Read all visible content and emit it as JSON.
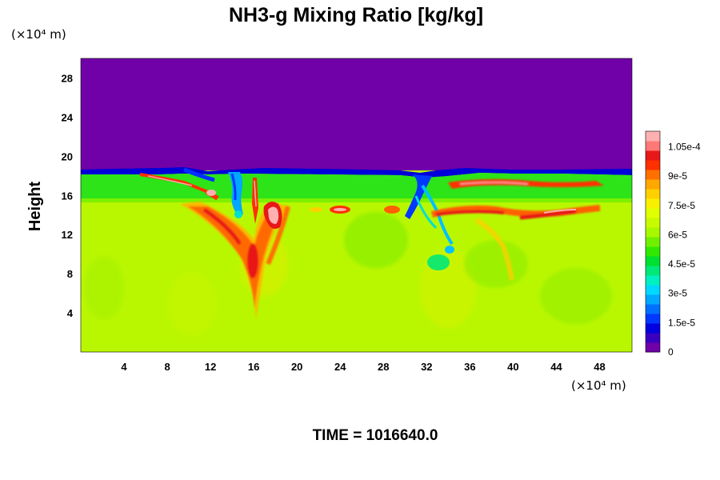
{
  "chart_data": {
    "type": "heatmap",
    "title": "NH3-g Mixing Ratio [kg/kg]",
    "ylabel": "Height",
    "x_unit": "(×10⁴ m)",
    "y_unit": "(×10⁴ m)",
    "footer": "TIME = 1016640.0",
    "x_ticks": [
      4,
      8,
      12,
      16,
      20,
      24,
      28,
      32,
      36,
      40,
      44,
      48
    ],
    "y_ticks": [
      4,
      8,
      12,
      16,
      20,
      24,
      28
    ],
    "xlim": [
      0,
      51
    ],
    "ylim": [
      0,
      30
    ],
    "colorbar": {
      "range": [
        0,
        0.000113
      ],
      "ticks": [
        {
          "value": 0,
          "label": "0"
        },
        {
          "value": 1.5e-05,
          "label": "1.5e-5"
        },
        {
          "value": 3e-05,
          "label": "3e-5"
        },
        {
          "value": 4.5e-05,
          "label": "4.5e-5"
        },
        {
          "value": 6e-05,
          "label": "6e-5"
        },
        {
          "value": 7.5e-05,
          "label": "7.5e-5"
        },
        {
          "value": 9e-05,
          "label": "9e-5"
        },
        {
          "value": 0.000105,
          "label": "1.05e-4"
        }
      ],
      "colors": [
        "#7000a8",
        "#3a00c0",
        "#0000e0",
        "#0038ff",
        "#0070ff",
        "#00a8ff",
        "#00d8ff",
        "#00f0c0",
        "#00e878",
        "#00e030",
        "#30e800",
        "#70f000",
        "#a8f800",
        "#c8fa00",
        "#e0ff00",
        "#f8f000",
        "#ffd000",
        "#ffa800",
        "#ff7000",
        "#ff3000",
        "#e81818",
        "#ff7878",
        "#ffb0b0"
      ]
    },
    "regions": {
      "upper_layer": "0 (above ~18.5)",
      "tropopause_band": "~6e-5 (about 15.5 to 18)",
      "lower_atmosphere": "~7.5e-5 (below ~15)",
      "features": [
        {
          "description": "high-value plume",
          "x": 15.8,
          "y": 9,
          "value": 0.000105
        },
        {
          "description": "high-value streak",
          "x": 18,
          "y": 14,
          "value": 0.00011
        },
        {
          "description": "high-value streak",
          "x": 44,
          "y": 14.5,
          "value": 0.000105
        },
        {
          "description": "low-value intrusion",
          "x": 14.5,
          "y": 15,
          "value": 3e-05
        },
        {
          "description": "low-value intrusion",
          "x": 31,
          "y": 14,
          "value": 1.5e-05
        }
      ]
    }
  }
}
